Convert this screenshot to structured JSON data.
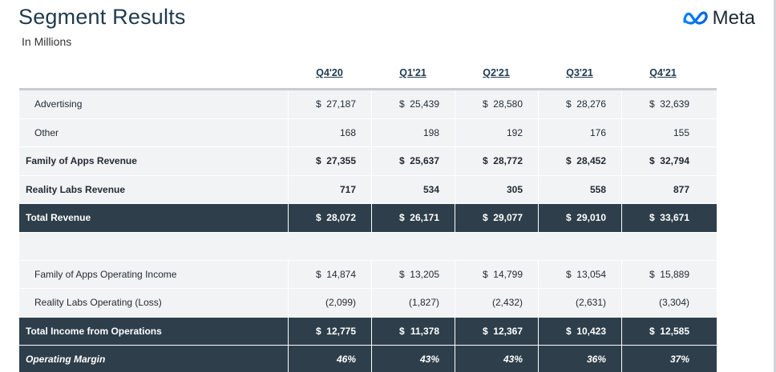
{
  "title": "Segment Results",
  "subtitle": "In Millions",
  "brand": "Meta",
  "columns": [
    "Q4'20",
    "Q1'21",
    "Q2'21",
    "Q3'21",
    "Q4'21"
  ],
  "rows": {
    "advertising": {
      "label": "Advertising",
      "values": [
        {
          "cur": "$",
          "val": "27,187"
        },
        {
          "cur": "$",
          "val": "25,439"
        },
        {
          "cur": "$",
          "val": "28,580"
        },
        {
          "cur": "$",
          "val": "28,276"
        },
        {
          "cur": "$",
          "val": "32,639"
        }
      ]
    },
    "other": {
      "label": "Other",
      "values": [
        {
          "cur": "",
          "val": "168"
        },
        {
          "cur": "",
          "val": "198"
        },
        {
          "cur": "",
          "val": "192"
        },
        {
          "cur": "",
          "val": "176"
        },
        {
          "cur": "",
          "val": "155"
        }
      ]
    },
    "foa_revenue": {
      "label": "Family of Apps Revenue",
      "values": [
        {
          "cur": "$",
          "val": "27,355"
        },
        {
          "cur": "$",
          "val": "25,637"
        },
        {
          "cur": "$",
          "val": "28,772"
        },
        {
          "cur": "$",
          "val": "28,452"
        },
        {
          "cur": "$",
          "val": "32,794"
        }
      ]
    },
    "rl_revenue": {
      "label": "Reality Labs Revenue",
      "values": [
        {
          "cur": "",
          "val": "717"
        },
        {
          "cur": "",
          "val": "534"
        },
        {
          "cur": "",
          "val": "305"
        },
        {
          "cur": "",
          "val": "558"
        },
        {
          "cur": "",
          "val": "877"
        }
      ]
    },
    "total_revenue": {
      "label": "Total Revenue",
      "values": [
        {
          "cur": "$",
          "val": "28,072"
        },
        {
          "cur": "$",
          "val": "26,171"
        },
        {
          "cur": "$",
          "val": "29,077"
        },
        {
          "cur": "$",
          "val": "29,010"
        },
        {
          "cur": "$",
          "val": "33,671"
        }
      ]
    },
    "foa_income": {
      "label": "Family of Apps Operating Income",
      "values": [
        {
          "cur": "$",
          "val": "14,874"
        },
        {
          "cur": "$",
          "val": "13,205"
        },
        {
          "cur": "$",
          "val": "14,799"
        },
        {
          "cur": "$",
          "val": "13,054"
        },
        {
          "cur": "$",
          "val": "15,889"
        }
      ]
    },
    "rl_loss": {
      "label": "Reality Labs Operating (Loss)",
      "values": [
        {
          "cur": "",
          "val": "(2,099)"
        },
        {
          "cur": "",
          "val": "(1,827)"
        },
        {
          "cur": "",
          "val": "(2,432)"
        },
        {
          "cur": "",
          "val": "(2,631)"
        },
        {
          "cur": "",
          "val": "(3,304)"
        }
      ]
    },
    "total_income": {
      "label": "Total Income from Operations",
      "values": [
        {
          "cur": "$",
          "val": "12,775"
        },
        {
          "cur": "$",
          "val": "11,378"
        },
        {
          "cur": "$",
          "val": "12,367"
        },
        {
          "cur": "$",
          "val": "10,423"
        },
        {
          "cur": "$",
          "val": "12,585"
        }
      ]
    },
    "operating_margin": {
      "label": "Operating Margin",
      "values": [
        {
          "cur": "",
          "val": "46%"
        },
        {
          "cur": "",
          "val": "43%"
        },
        {
          "cur": "",
          "val": "43%"
        },
        {
          "cur": "",
          "val": "36%"
        },
        {
          "cur": "",
          "val": "37%"
        }
      ]
    }
  },
  "colors": {
    "dark_row": "#2e3f4b",
    "light_row": "#f2f3f5",
    "meta_blue": "#0668e1"
  }
}
